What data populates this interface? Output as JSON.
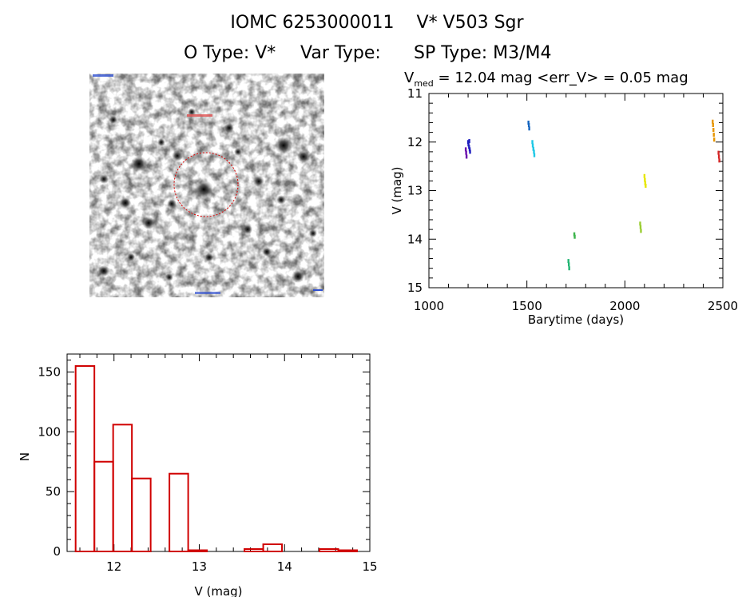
{
  "header": {
    "line1_id": "IOMC 6253000011",
    "line1_name": "V* V503 Sgr",
    "otype": "O Type: V*",
    "vartype": "Var Type:",
    "sptype": "SP Type: M3/M4"
  },
  "lightcurve_caption": {
    "prefix": "V",
    "sub": "med",
    "rest": " = 12.04 mag <err_V> = 0.05 mag"
  },
  "chart_data": [
    {
      "type": "scatter",
      "xlabel": "Barytime (days)",
      "ylabel": "V (mag)",
      "xlim": [
        1000,
        2500
      ],
      "ylim": [
        15,
        11
      ],
      "y_inverted": true,
      "xticks": [
        1000,
        1500,
        2000,
        2500
      ],
      "yticks": [
        11,
        12,
        13,
        14,
        15
      ],
      "series": [
        {
          "color": "#6a0dad",
          "x": [
            1188,
            1190,
            1192
          ],
          "y": [
            12.15,
            12.22,
            12.3
          ]
        },
        {
          "color": "#1f1fbf",
          "x": [
            1200,
            1202,
            1205,
            1208,
            1210,
            1206
          ],
          "y": [
            12.0,
            12.05,
            12.1,
            12.15,
            12.2,
            11.98
          ]
        },
        {
          "color": "#1565c0",
          "x": [
            1508,
            1510,
            1512
          ],
          "y": [
            11.6,
            11.65,
            11.72
          ]
        },
        {
          "color": "#1ec8e6",
          "x": [
            1528,
            1530,
            1533,
            1536,
            1538
          ],
          "y": [
            12.0,
            12.07,
            12.14,
            12.2,
            12.27
          ]
        },
        {
          "color": "#22b573",
          "x": [
            1712,
            1714,
            1716
          ],
          "y": [
            14.45,
            14.52,
            14.6
          ]
        },
        {
          "color": "#3cb44b",
          "x": [
            1742,
            1744
          ],
          "y": [
            13.9,
            13.95
          ]
        },
        {
          "color": "#9acd32",
          "x": [
            2078,
            2080,
            2082
          ],
          "y": [
            13.68,
            13.75,
            13.83
          ]
        },
        {
          "color": "#e6e600",
          "x": [
            2100,
            2102,
            2104,
            2106
          ],
          "y": [
            12.7,
            12.78,
            12.85,
            12.9
          ]
        },
        {
          "color": "#e69500",
          "x": [
            2448,
            2450,
            2452,
            2454,
            2456
          ],
          "y": [
            11.58,
            11.65,
            11.75,
            11.85,
            11.95
          ]
        },
        {
          "color": "#d62728",
          "x": [
            2478,
            2480,
            2482
          ],
          "y": [
            12.22,
            12.3,
            12.38
          ]
        }
      ]
    },
    {
      "type": "bar",
      "style": "step-histogram",
      "xlabel": "V (mag)",
      "ylabel": "N",
      "xlim": [
        11.45,
        15.0
      ],
      "ylim": [
        0,
        165
      ],
      "xticks": [
        12,
        13,
        14,
        15
      ],
      "yticks": [
        0,
        50,
        100,
        150
      ],
      "bin_width": 0.22,
      "bin_starts": [
        11.55,
        11.77,
        11.99,
        12.21,
        12.43,
        12.65,
        12.87,
        13.09,
        13.31,
        13.53,
        13.75,
        13.97,
        14.19,
        14.41,
        14.63
      ],
      "values": [
        155,
        75,
        106,
        61,
        0,
        65,
        1,
        0,
        0,
        2,
        6,
        0,
        0,
        2,
        1
      ]
    }
  ]
}
